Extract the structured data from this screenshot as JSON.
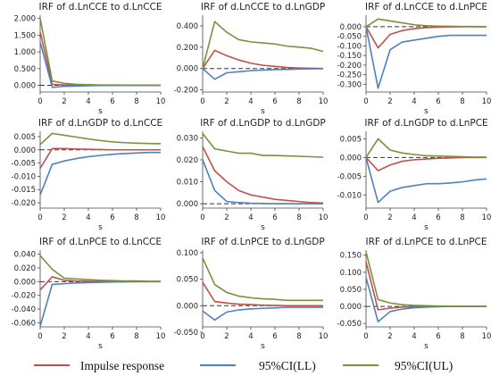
{
  "chart_data": [
    {
      "type": "line",
      "title": "IRF of d.LnCCE to d.LnCCE",
      "xlabel": "s",
      "x": [
        0,
        1,
        2,
        3,
        4,
        5,
        6,
        7,
        8,
        9,
        10
      ],
      "ylim": [
        -0.2,
        2.1
      ],
      "yticks": [
        0,
        0.5,
        1,
        1.5,
        2
      ],
      "yfmt": 3,
      "series": [
        {
          "name": "Impulse response",
          "values": [
            1.6,
            0.03,
            0.01,
            0.005,
            0.002,
            0.001,
            0,
            0,
            0,
            0,
            0
          ]
        },
        {
          "name": "95%CI(LL)",
          "values": [
            1.3,
            -0.06,
            -0.03,
            -0.02,
            -0.01,
            -0.005,
            -0.003,
            -0.002,
            -0.001,
            0,
            0
          ]
        },
        {
          "name": "95%CI(UL)",
          "values": [
            2.0,
            0.13,
            0.06,
            0.03,
            0.02,
            0.01,
            0.008,
            0.005,
            0.003,
            0.002,
            0.001
          ]
        }
      ]
    },
    {
      "type": "line",
      "title": "IRF of d.LnCCE to d.LnGDP",
      "xlabel": "s",
      "x": [
        0,
        1,
        2,
        3,
        4,
        5,
        6,
        7,
        8,
        9,
        10
      ],
      "ylim": [
        -0.22,
        0.5
      ],
      "yticks": [
        -0.2,
        0,
        0.2,
        0.4
      ],
      "yfmt": 3,
      "series": [
        {
          "name": "Impulse response",
          "values": [
            0,
            0.17,
            0.12,
            0.08,
            0.05,
            0.03,
            0.02,
            0.01,
            0.005,
            0.002,
            0
          ]
        },
        {
          "name": "95%CI(LL)",
          "values": [
            0,
            -0.1,
            -0.04,
            -0.03,
            -0.02,
            -0.015,
            -0.01,
            -0.008,
            -0.005,
            -0.003,
            -0.002
          ]
        },
        {
          "name": "95%CI(UL)",
          "values": [
            0,
            0.44,
            0.34,
            0.27,
            0.25,
            0.24,
            0.23,
            0.21,
            0.2,
            0.19,
            0.16
          ]
        }
      ]
    },
    {
      "type": "line",
      "title": "IRF of d.LnCCE to d.LnPCE",
      "xlabel": "s",
      "x": [
        0,
        1,
        2,
        3,
        4,
        5,
        6,
        7,
        8,
        9,
        10
      ],
      "ylim": [
        -0.34,
        0.06
      ],
      "yticks": [
        -0.3,
        -0.25,
        -0.2,
        -0.15,
        -0.1,
        -0.05,
        0
      ],
      "yfmt": 3,
      "series": [
        {
          "name": "Impulse response",
          "values": [
            0,
            -0.11,
            -0.04,
            -0.02,
            -0.01,
            -0.005,
            -0.002,
            -0.001,
            0,
            0,
            0
          ]
        },
        {
          "name": "95%CI(LL)",
          "values": [
            0,
            -0.32,
            -0.12,
            -0.08,
            -0.07,
            -0.06,
            -0.05,
            -0.045,
            -0.045,
            -0.045,
            -0.045
          ]
        },
        {
          "name": "95%CI(UL)",
          "values": [
            0,
            0.04,
            0.03,
            0.02,
            0.01,
            0.005,
            0.003,
            0.002,
            0.001,
            0.001,
            0
          ]
        }
      ]
    },
    {
      "type": "line",
      "title": "IRF of d.LnGDP to d.LnCCE",
      "xlabel": "s",
      "x": [
        0,
        1,
        2,
        3,
        4,
        5,
        6,
        7,
        8,
        9,
        10
      ],
      "ylim": [
        -0.022,
        0.007
      ],
      "yticks": [
        -0.02,
        -0.015,
        -0.01,
        -0.005,
        0,
        0.005
      ],
      "yfmt": 3,
      "series": [
        {
          "name": "Impulse response",
          "values": [
            -0.007,
            0.0005,
            0.0005,
            0.0003,
            0.0002,
            0.0001,
            0,
            0,
            0,
            0,
            0
          ]
        },
        {
          "name": "95%CI(LL)",
          "values": [
            -0.017,
            -0.0055,
            -0.0042,
            -0.0033,
            -0.0026,
            -0.0021,
            -0.0017,
            -0.0014,
            -0.0012,
            -0.001,
            -0.001
          ]
        },
        {
          "name": "95%CI(UL)",
          "values": [
            0.002,
            0.0062,
            0.0055,
            0.0048,
            0.0041,
            0.0035,
            0.003,
            0.0027,
            0.0025,
            0.0024,
            0.0023
          ]
        }
      ]
    },
    {
      "type": "line",
      "title": "IRF of d.LnGDP to d.LnGDP",
      "xlabel": "s",
      "x": [
        0,
        1,
        2,
        3,
        4,
        5,
        6,
        7,
        8,
        9,
        10
      ],
      "ylim": [
        -0.002,
        0.033
      ],
      "yticks": [
        0,
        0.01,
        0.02,
        0.03
      ],
      "yfmt": 3,
      "series": [
        {
          "name": "Impulse response",
          "values": [
            0.026,
            0.015,
            0.01,
            0.006,
            0.004,
            0.003,
            0.002,
            0.0015,
            0.001,
            0.0005,
            0.0003
          ]
        },
        {
          "name": "95%CI(LL)",
          "values": [
            0.02,
            0.006,
            0.001,
            0.0005,
            0.0002,
            0.0001,
            0,
            0,
            0,
            0,
            0
          ]
        },
        {
          "name": "95%CI(UL)",
          "values": [
            0.032,
            0.025,
            0.024,
            0.023,
            0.023,
            0.022,
            0.022,
            0.0218,
            0.0216,
            0.0214,
            0.0212
          ]
        }
      ]
    },
    {
      "type": "line",
      "title": "IRF of d.LnGDP to d.LnPCE",
      "xlabel": "s",
      "x": [
        0,
        1,
        2,
        3,
        4,
        5,
        6,
        7,
        8,
        9,
        10
      ],
      "ylim": [
        -0.0135,
        0.007
      ],
      "yticks": [
        -0.01,
        -0.005,
        0,
        0.005
      ],
      "yfmt": 3,
      "series": [
        {
          "name": "Impulse response",
          "values": [
            0,
            -0.0035,
            -0.002,
            -0.001,
            -0.0006,
            -0.0004,
            -0.0002,
            -0.0001,
            0,
            0,
            0
          ]
        },
        {
          "name": "95%CI(LL)",
          "values": [
            0,
            -0.012,
            -0.009,
            -0.008,
            -0.0075,
            -0.007,
            -0.007,
            -0.0068,
            -0.0065,
            -0.006,
            -0.0057
          ]
        },
        {
          "name": "95%CI(UL)",
          "values": [
            0,
            0.005,
            0.002,
            0.0012,
            0.0008,
            0.0005,
            0.0004,
            0.0003,
            0.0002,
            0.0001,
            0.0001
          ]
        }
      ]
    },
    {
      "type": "line",
      "title": "IRF of d.LnPCE to d.LnCCE",
      "xlabel": "s",
      "x": [
        0,
        1,
        2,
        3,
        4,
        5,
        6,
        7,
        8,
        9,
        10
      ],
      "ylim": [
        -0.066,
        0.046
      ],
      "yticks": [
        -0.06,
        -0.04,
        -0.02,
        0,
        0.02,
        0.04
      ],
      "yfmt": 3,
      "series": [
        {
          "name": "Impulse response",
          "values": [
            -0.012,
            0.007,
            0.002,
            0.001,
            0.0005,
            0.0002,
            0,
            0,
            0,
            0,
            0
          ]
        },
        {
          "name": "95%CI(LL)",
          "values": [
            -0.065,
            -0.004,
            -0.003,
            -0.002,
            -0.0015,
            -0.001,
            -0.0005,
            -0.0003,
            0,
            0,
            0
          ]
        },
        {
          "name": "95%CI(UL)",
          "values": [
            0.038,
            0.018,
            0.005,
            0.004,
            0.003,
            0.002,
            0.0015,
            0.001,
            0.001,
            0.0005,
            0.0005
          ]
        }
      ]
    },
    {
      "type": "line",
      "title": "IRF of d.LnPCE to d.LnGDP",
      "xlabel": "s",
      "x": [
        0,
        1,
        2,
        3,
        4,
        5,
        6,
        7,
        8,
        9,
        10
      ],
      "ylim": [
        -0.04,
        0.105
      ],
      "yticks": [
        -0.05,
        0,
        0.05,
        0.1
      ],
      "yfmt": 3,
      "series": [
        {
          "name": "Impulse response",
          "values": [
            0.044,
            0.008,
            0.005,
            0.003,
            0.002,
            0.001,
            0.0005,
            0,
            0,
            0,
            0
          ]
        },
        {
          "name": "95%CI(LL)",
          "values": [
            -0.01,
            -0.027,
            -0.012,
            -0.008,
            -0.006,
            -0.005,
            -0.004,
            -0.003,
            -0.003,
            -0.003,
            -0.003
          ]
        },
        {
          "name": "95%CI(UL)",
          "values": [
            0.09,
            0.04,
            0.025,
            0.018,
            0.015,
            0.013,
            0.012,
            0.01,
            0.01,
            0.01,
            0.01
          ]
        }
      ]
    },
    {
      "type": "line",
      "title": "IRF of d.LnPCE to d.LnPCE",
      "xlabel": "s",
      "x": [
        0,
        1,
        2,
        3,
        4,
        5,
        6,
        7,
        8,
        9,
        10
      ],
      "ylim": [
        -0.06,
        0.165
      ],
      "yticks": [
        -0.05,
        0,
        0.05,
        0.1,
        0.15
      ],
      "yfmt": 3,
      "series": [
        {
          "name": "Impulse response",
          "values": [
            0.13,
            -0.01,
            -0.005,
            -0.002,
            -0.001,
            0,
            0,
            0,
            0,
            0,
            0
          ]
        },
        {
          "name": "95%CI(LL)",
          "values": [
            0.085,
            -0.045,
            -0.015,
            -0.008,
            -0.004,
            -0.002,
            -0.001,
            0,
            0,
            0,
            0
          ]
        },
        {
          "name": "95%CI(UL)",
          "values": [
            0.16,
            0.02,
            0.01,
            0.005,
            0.003,
            0.002,
            0.001,
            0.0005,
            0,
            0,
            0
          ]
        }
      ]
    }
  ],
  "xticks": [
    0,
    2,
    4,
    6,
    8,
    10
  ],
  "legend": [
    {
      "label": "Impulse response",
      "color": "#c0504d"
    },
    {
      "label": "95%CI(LL)",
      "color": "#4f81bd"
    },
    {
      "label": "95%CI(UL)",
      "color": "#77933c"
    }
  ],
  "colors": {
    "irf": "#c0504d",
    "ll": "#4f81bd",
    "ul": "#77933c",
    "zero": "#333333"
  }
}
